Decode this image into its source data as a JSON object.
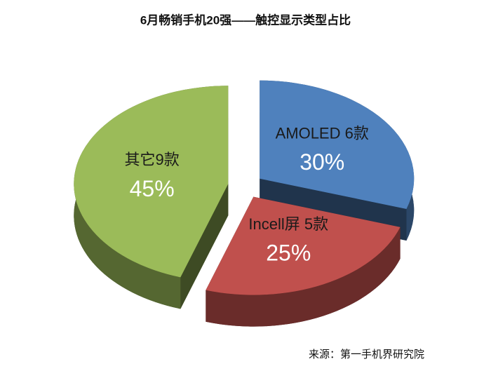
{
  "chart_data": {
    "type": "pie",
    "title": "6月畅销手机20强——触控显示类型占比",
    "categories": [
      "AMOLED 6款",
      "Incell屏 5款",
      "其它9款"
    ],
    "values": [
      30,
      25,
      45
    ],
    "value_labels": [
      "30%",
      "25%",
      "45%"
    ],
    "colors": [
      "#4f81bd",
      "#c0504d",
      "#9bbb59"
    ],
    "source": "来源：第一手机界研究院"
  }
}
